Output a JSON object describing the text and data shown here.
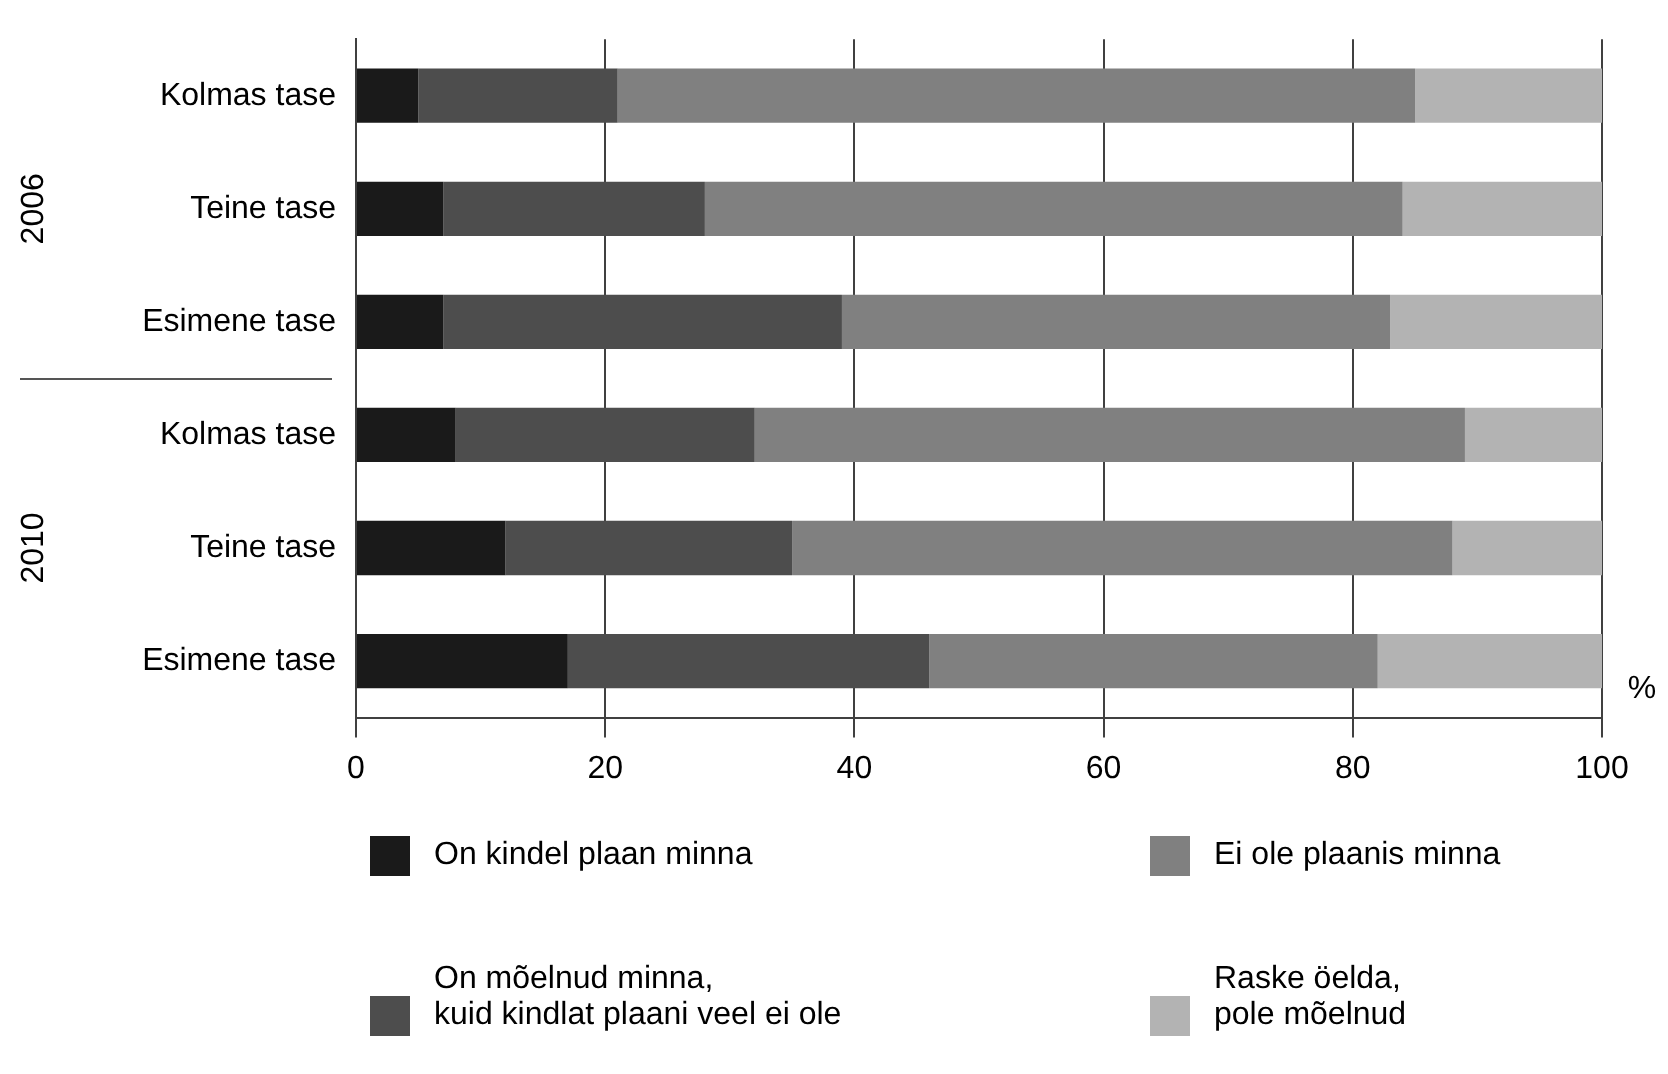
{
  "chart_data": {
    "type": "bar",
    "orientation": "horizontal",
    "stacked": true,
    "categories": [
      "Kolmas tase",
      "Teine tase",
      "Esimene tase",
      "Kolmas tase",
      "Teine tase",
      "Esimene tase"
    ],
    "series": [
      {
        "name": "On kindel plaan minna",
        "color": "#1a1a1a",
        "values": [
          5,
          7,
          7,
          8,
          12,
          17
        ]
      },
      {
        "name": "On mõelnud minna,\nkuid kindlat plaani veel ei ole",
        "color": "#4d4d4d",
        "values": [
          16,
          21,
          32,
          24,
          23,
          29
        ]
      },
      {
        "name": "Ei ole plaanis minna",
        "color": "#808080",
        "values": [
          64,
          56,
          44,
          57,
          53,
          36
        ]
      },
      {
        "name": "Raske öelda,\npole mõelnud",
        "color": "#b3b3b3",
        "values": [
          15,
          16,
          17,
          11,
          12,
          18
        ]
      }
    ],
    "xlabel": "%",
    "annotations": [
      "2006",
      "2010"
    ],
    "xlim": [
      0,
      100
    ],
    "xticks": [
      0,
      20,
      40,
      60,
      80,
      100
    ],
    "grid": "x",
    "legend": "bottom"
  }
}
